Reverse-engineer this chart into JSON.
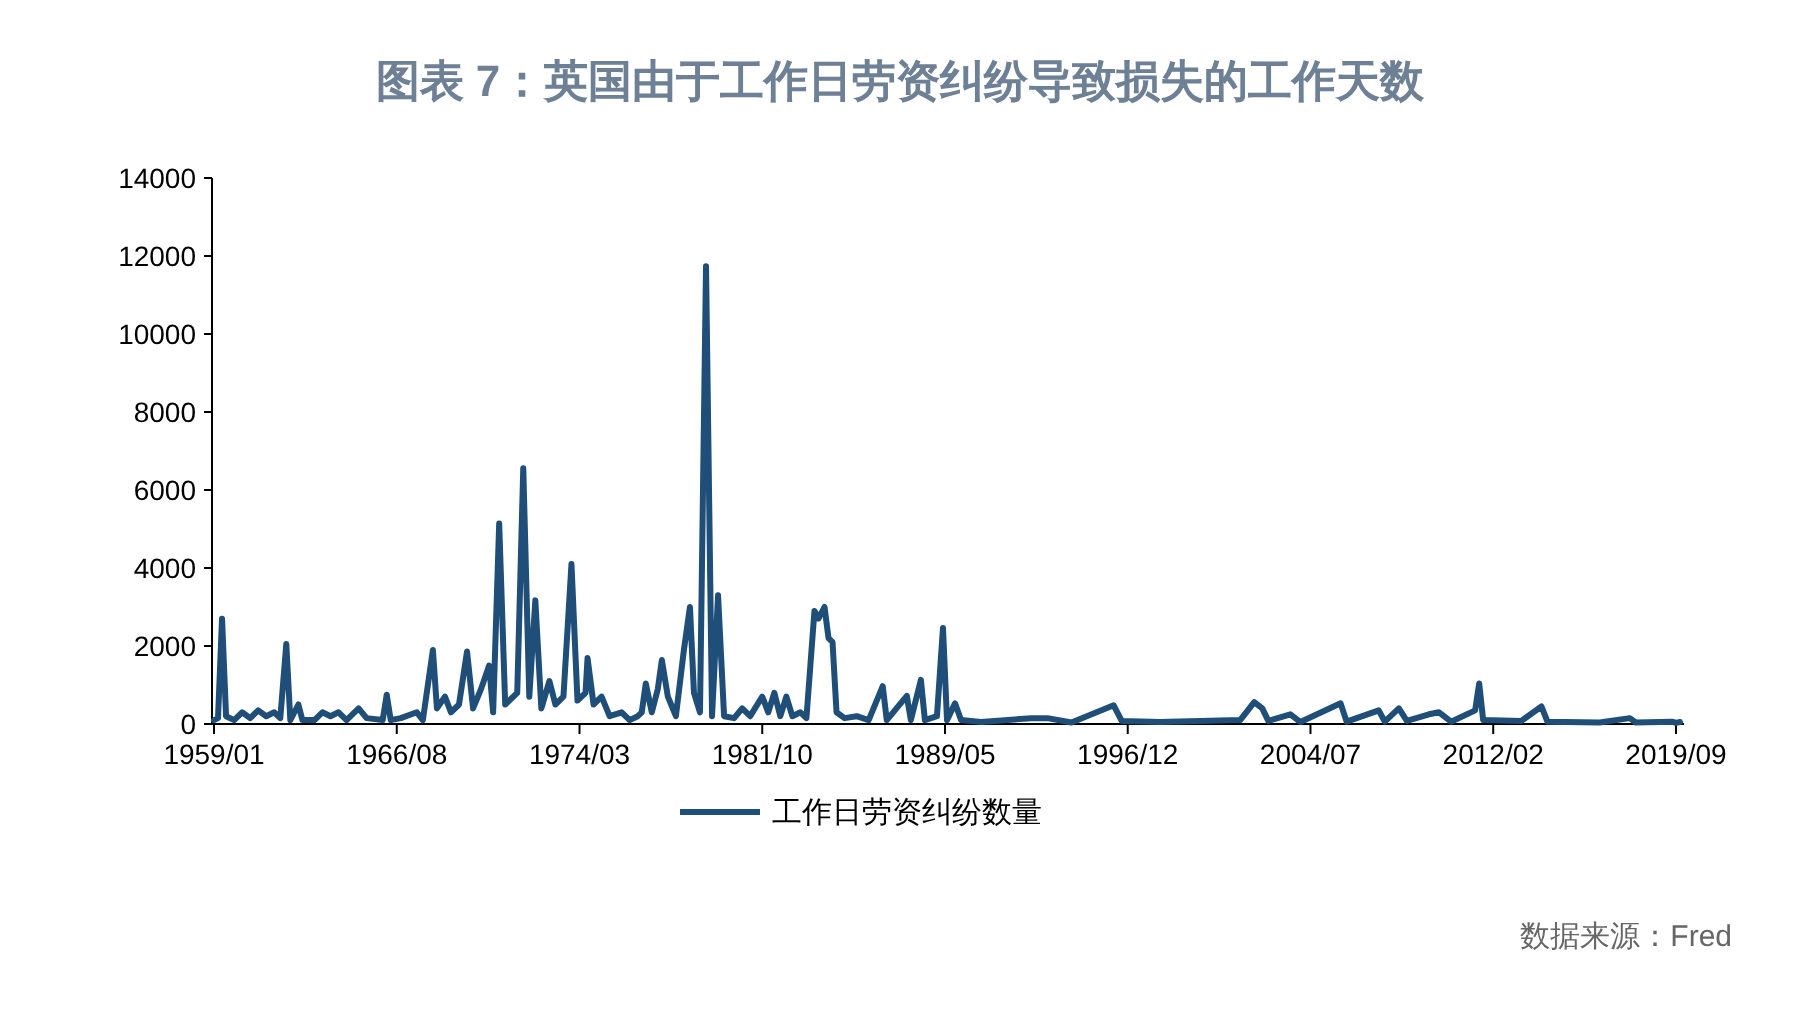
{
  "chart_data": {
    "type": "line",
    "title": "图表 7：英国由于工作日劳资纠纷导致损失的工作天数",
    "annotations": [
      "数据来源：Fred"
    ],
    "legend": "bottom",
    "grid": false,
    "marker": "none",
    "line_style": "solid",
    "xlim": [
      "1958-12",
      "2020-01"
    ],
    "xticks": [
      {
        "value": "1959-01",
        "label": "1959/01"
      },
      {
        "value": "1966-08",
        "label": "1966/08"
      },
      {
        "value": "1974-03",
        "label": "1974/03"
      },
      {
        "value": "1981-10",
        "label": "1981/10"
      },
      {
        "value": "1989-05",
        "label": "1989/05"
      },
      {
        "value": "1996-12",
        "label": "1996/12"
      },
      {
        "value": "2004-07",
        "label": "2004/07"
      },
      {
        "value": "2012-02",
        "label": "2012/02"
      },
      {
        "value": "2019-09",
        "label": "2019/09"
      }
    ],
    "ylim": [
      0,
      14000
    ],
    "yticks": [
      0,
      2000,
      4000,
      6000,
      8000,
      10000,
      12000,
      14000
    ],
    "series": [
      {
        "name": "工作日劳资纠纷数量",
        "color": "#1f4e79",
        "x": [
          "1959-01",
          "1959-03",
          "1959-05",
          "1959-07",
          "1959-11",
          "1960-03",
          "1960-07",
          "1960-11",
          "1961-03",
          "1961-07",
          "1961-10",
          "1962-01",
          "1962-03",
          "1962-07",
          "1962-09",
          "1963-03",
          "1963-07",
          "1963-11",
          "1964-03",
          "1964-07",
          "1965-01",
          "1965-05",
          "1966-01",
          "1966-03",
          "1966-05",
          "1966-10",
          "1967-06",
          "1967-09",
          "1968-02",
          "1968-04",
          "1968-08",
          "1968-11",
          "1969-03",
          "1969-07",
          "1969-10",
          "1970-02",
          "1970-06",
          "1970-08",
          "1970-11",
          "1971-02",
          "1971-08",
          "1971-11",
          "1972-02",
          "1972-05",
          "1972-08",
          "1972-12",
          "1973-03",
          "1973-07",
          "1973-11",
          "1974-02",
          "1974-06",
          "1974-07",
          "1974-10",
          "1975-02",
          "1975-06",
          "1975-12",
          "1976-04",
          "1976-08",
          "1976-10",
          "1976-12",
          "1977-03",
          "1977-06",
          "1977-08",
          "1977-11",
          "1978-03",
          "1978-07",
          "1978-10",
          "1978-12",
          "1979-03",
          "1979-06",
          "1979-09",
          "1979-12",
          "1980-03",
          "1980-08",
          "1980-12",
          "1981-04",
          "1981-10",
          "1982-01",
          "1982-04",
          "1982-07",
          "1982-10",
          "1983-01",
          "1983-05",
          "1983-08",
          "1983-12",
          "1984-02",
          "1984-05",
          "1984-07",
          "1984-09",
          "1984-11",
          "1985-03",
          "1985-09",
          "1986-03",
          "1986-10",
          "1986-12",
          "1987-10",
          "1987-12",
          "1988-05",
          "1988-07",
          "1989-01",
          "1989-04",
          "1989-06",
          "1989-10",
          "1990-01",
          "1990-11",
          "1992-12",
          "1993-08",
          "1994-08",
          "1996-05",
          "1996-09",
          "1998-04",
          "1999-12",
          "2001-08",
          "2002-03",
          "2002-07",
          "2002-10",
          "2003-09",
          "2004-02",
          "2005-10",
          "2006-01",
          "2007-05",
          "2007-08",
          "2008-03",
          "2008-07",
          "2009-06",
          "2009-11",
          "2010-05",
          "2011-05",
          "2011-07",
          "2011-09",
          "2013-04",
          "2014-02",
          "2014-05",
          "2016-07",
          "2017-10",
          "2018-01",
          "2019-07",
          "2019-09",
          "2019-11"
        ],
        "values": [
          100,
          150,
          2700,
          200,
          100,
          300,
          150,
          350,
          200,
          300,
          150,
          2050,
          100,
          500,
          100,
          100,
          300,
          200,
          300,
          100,
          400,
          150,
          100,
          750,
          100,
          150,
          300,
          100,
          1900,
          400,
          700,
          300,
          500,
          1860,
          400,
          900,
          1500,
          300,
          5140,
          500,
          800,
          6560,
          700,
          3170,
          400,
          1100,
          500,
          700,
          4100,
          600,
          800,
          1690,
          500,
          700,
          200,
          300,
          100,
          200,
          300,
          1040,
          300,
          900,
          1640,
          700,
          200,
          1900,
          3000,
          800,
          300,
          11740,
          200,
          3300,
          200,
          150,
          400,
          200,
          700,
          300,
          800,
          200,
          700,
          200,
          300,
          150,
          2900,
          2700,
          3000,
          2200,
          2100,
          300,
          150,
          200,
          100,
          970,
          100,
          720,
          100,
          1130,
          100,
          200,
          2460,
          100,
          530,
          100,
          50,
          150,
          150,
          40,
          480,
          80,
          50,
          80,
          100,
          560,
          400,
          80,
          250,
          50,
          530,
          60,
          350,
          60,
          400,
          80,
          250,
          300,
          60,
          350,
          1040,
          100,
          80,
          450,
          60,
          40,
          150,
          40,
          60,
          30,
          50
        ]
      }
    ]
  }
}
